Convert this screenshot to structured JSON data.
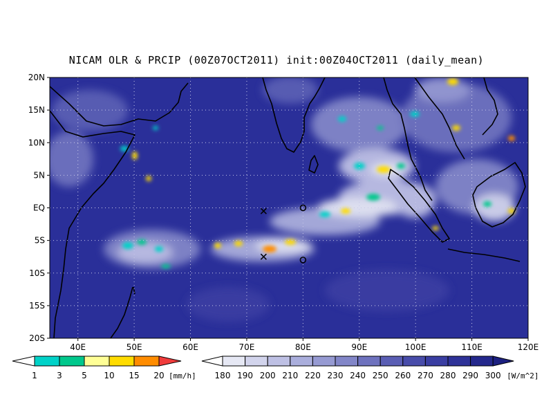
{
  "title": "NICAM OLR & PRCIP (00Z07OCT2011) init:00Z04OCT2011 (daily_mean)",
  "map": {
    "lon_range": [
      35,
      120
    ],
    "lat_range": [
      -20,
      20
    ],
    "lat_ticks": [
      "20N",
      "15N",
      "10N",
      "5N",
      "EQ",
      "5S",
      "10S",
      "15S",
      "20S"
    ],
    "lon_ticks": [
      "40E",
      "50E",
      "60E",
      "70E",
      "80E",
      "90E",
      "100E",
      "110E",
      "120E"
    ],
    "grid": "dotted",
    "background_color": "#2a2f99",
    "markers": [
      {
        "symbol": "x",
        "lon": 73,
        "lat": -0.5
      },
      {
        "symbol": "x",
        "lon": 73,
        "lat": -7.5
      },
      {
        "symbol": "o",
        "lon": 80,
        "lat": 0
      },
      {
        "symbol": "o",
        "lon": 80,
        "lat": -8
      }
    ]
  },
  "precip_legend": {
    "labels": [
      "1",
      "3",
      "5",
      "10",
      "15",
      "20"
    ],
    "unit": "[mm/h]",
    "colors": [
      "#00d2c8",
      "#00c88c",
      "#ffff96",
      "#ffdc00",
      "#ff8c00",
      "#f03c3c"
    ]
  },
  "olr_legend": {
    "labels": [
      "180",
      "190",
      "200",
      "210",
      "220",
      "230",
      "240",
      "250",
      "260",
      "270",
      "280",
      "290",
      "300"
    ],
    "unit": "[W/m^2]",
    "colors": [
      "#ffffff",
      "#e6e8f4",
      "#d2d4ec",
      "#bec0e4",
      "#aaaedc",
      "#969ad2",
      "#8286c8",
      "#6e72be",
      "#5a5eb4",
      "#484caa",
      "#3a3ea2",
      "#2e3298",
      "#24288c",
      "#1c2080"
    ]
  }
}
